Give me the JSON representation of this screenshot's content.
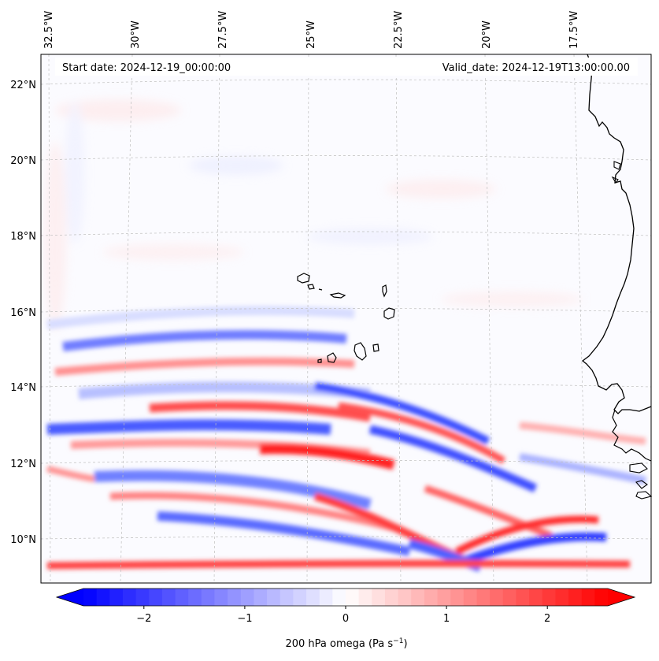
{
  "map": {
    "start_date": "Start date: 2024-12-19_00:00:00",
    "valid_date": "Valid_date: 2024-12-19T13:00:00.00",
    "lon_labels": [
      "32.5°W",
      "30°W",
      "27.5°W",
      "25°W",
      "22.5°W",
      "20°W",
      "17.5°W"
    ],
    "lat_labels": [
      "22°N",
      "20°N",
      "18°N",
      "16°N",
      "14°N",
      "12°N",
      "10°N"
    ],
    "field": "200 hPa omega",
    "region": "Cape Verde Islands and West African coast"
  },
  "colorbar": {
    "label": "200 hPa omega (Pa s",
    "label_exponent": "−1",
    "label_close": ")",
    "tick_labels": [
      "−2",
      "−1",
      "0",
      "1",
      "2"
    ],
    "tick_values": [
      -2,
      -1,
      0,
      1,
      2
    ],
    "vmin": -2.6,
    "vmax": 2.6,
    "levels": 40,
    "color_neg": "#0000ff",
    "color_mid": "#ffffff",
    "color_pos": "#ff0000"
  }
}
